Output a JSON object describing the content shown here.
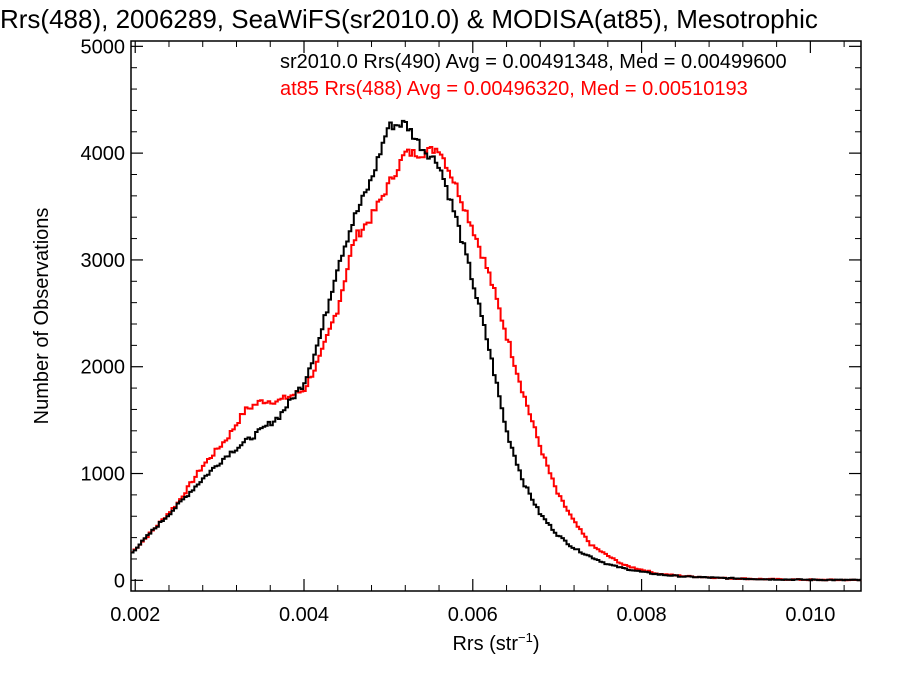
{
  "chart_data": {
    "type": "line",
    "title": "Rrs(488), 2006289, SeaWiFS(sr2010.0) & MODISA(at85), Mesotrophic",
    "xlabel": "Rrs (str",
    "xlabel_sup": "−1",
    "xlabel_tail": ")",
    "ylabel": "Number of Observations",
    "xlim": [
      0.00195,
      0.0106
    ],
    "ylim": [
      -100,
      5050
    ],
    "x_ticks": [
      0.002,
      0.004,
      0.006,
      0.008,
      0.01
    ],
    "x_tick_labels": [
      "0.002",
      "0.004",
      "0.006",
      "0.008",
      "0.010"
    ],
    "y_ticks": [
      0,
      1000,
      2000,
      3000,
      4000,
      5000
    ],
    "y_tick_labels": [
      "0",
      "1000",
      "2000",
      "3000",
      "4000",
      "5000"
    ],
    "series": [
      {
        "name": "sr2010.0 Rrs(490) Avg = 0.00491348, Med = 0.00499600",
        "color": "#000000",
        "x": [
          0.00195,
          0.0022,
          0.0025,
          0.0028,
          0.0031,
          0.0034,
          0.0037,
          0.004,
          0.0042,
          0.0044,
          0.0046,
          0.0048,
          0.005,
          0.0052,
          0.0054,
          0.0056,
          0.0058,
          0.006,
          0.0062,
          0.0064,
          0.0066,
          0.0068,
          0.007,
          0.0072,
          0.0074,
          0.0076,
          0.0078,
          0.008,
          0.0082,
          0.0085,
          0.009,
          0.0095,
          0.01,
          0.0106
        ],
        "y": [
          250,
          460,
          700,
          950,
          1180,
          1350,
          1530,
          1850,
          2300,
          2950,
          3400,
          3750,
          4250,
          4280,
          4050,
          3900,
          3400,
          2800,
          2150,
          1400,
          920,
          620,
          430,
          300,
          220,
          150,
          110,
          80,
          55,
          35,
          20,
          10,
          5,
          2
        ]
      },
      {
        "name": "at85 Rrs(488) Avg = 0.00496320, Med = 0.00510193",
        "color": "#ff0000",
        "x": [
          0.00195,
          0.0022,
          0.0025,
          0.0028,
          0.0031,
          0.0033,
          0.0035,
          0.0037,
          0.004,
          0.0042,
          0.0044,
          0.0046,
          0.0048,
          0.005,
          0.0052,
          0.0054,
          0.0056,
          0.0058,
          0.006,
          0.0062,
          0.0064,
          0.0066,
          0.0068,
          0.007,
          0.0072,
          0.0074,
          0.0076,
          0.0078,
          0.008,
          0.0082,
          0.0085,
          0.009,
          0.0095,
          0.01,
          0.0106
        ],
        "y": [
          250,
          460,
          720,
          1070,
          1340,
          1590,
          1680,
          1680,
          1780,
          2100,
          2550,
          3200,
          3400,
          3700,
          4000,
          4000,
          4050,
          3700,
          3300,
          2850,
          2300,
          1750,
          1250,
          820,
          550,
          330,
          230,
          140,
          100,
          60,
          40,
          20,
          10,
          5,
          2
        ]
      }
    ],
    "legend_placement": "top-right",
    "grid": false
  }
}
